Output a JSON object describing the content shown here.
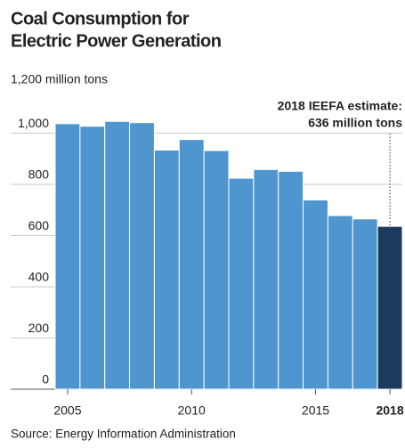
{
  "chart_data": {
    "type": "bar",
    "title": [
      "Coal Consumption for",
      "Electric Power Generation"
    ],
    "x": [
      2005,
      2006,
      2007,
      2008,
      2009,
      2010,
      2011,
      2012,
      2013,
      2014,
      2015,
      2016,
      2017,
      2018
    ],
    "values": [
      1037,
      1027,
      1046,
      1041,
      934,
      975,
      932,
      824,
      858,
      851,
      739,
      678,
      665,
      636
    ],
    "colors": [
      "#4f95cf",
      "#4f95cf",
      "#4f95cf",
      "#4f95cf",
      "#4f95cf",
      "#4f95cf",
      "#4f95cf",
      "#4f95cf",
      "#4f95cf",
      "#4f95cf",
      "#4f95cf",
      "#4f95cf",
      "#4f95cf",
      "#1b3a5c"
    ],
    "xlim": [
      2004.5,
      2018.5
    ],
    "xticks": [
      2005,
      2010,
      2015,
      2018
    ],
    "ylim": [
      0,
      1200
    ],
    "yticks": [
      0,
      200,
      400,
      600,
      800,
      {
        "value": 1000,
        "label": "1,000"
      },
      {
        "value": 1200,
        "label": "1,200 million tons"
      }
    ],
    "grid": true,
    "annotation": [
      "2018 IEEFA estimate:",
      "636 million tons"
    ],
    "source": "Source:  Energy Information Administration"
  }
}
